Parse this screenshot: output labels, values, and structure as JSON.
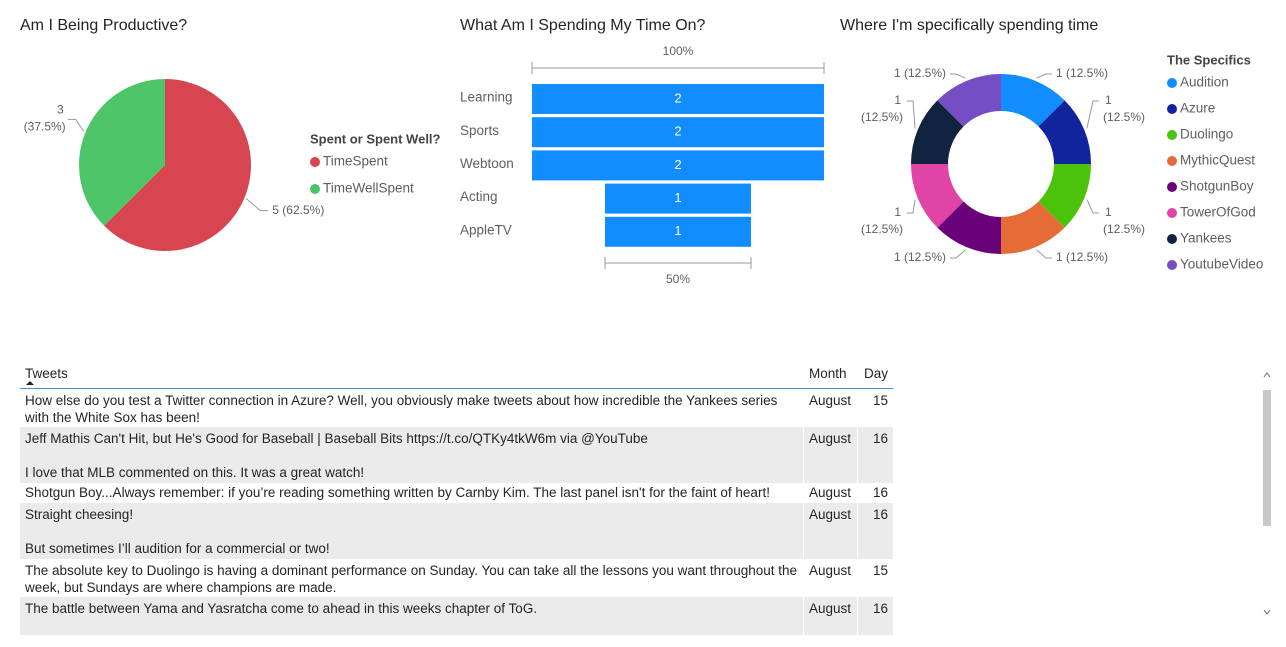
{
  "chart_data": [
    {
      "type": "pie",
      "title": "Am I Being Productive?",
      "legend_title": "Spent or Spent Well?",
      "categories": [
        "TimeSpent",
        "TimeWellSpent"
      ],
      "values": [
        5,
        3
      ],
      "value_labels": [
        "5 (62.5%)",
        "3 (37.5%)"
      ],
      "colors": [
        "#d64550",
        "#4fc56a"
      ]
    },
    {
      "type": "funnel",
      "title": "What Am I Spending My Time On?",
      "categories": [
        "Learning",
        "Sports",
        "Webtoon",
        "Acting",
        "AppleTV"
      ],
      "values": [
        2,
        2,
        2,
        1,
        1
      ],
      "top_label": "100%",
      "bottom_label": "50%",
      "color": "#118dff"
    },
    {
      "type": "donut",
      "title": "Where I'm specifically spending time",
      "legend_title": "The Specifics",
      "categories": [
        "Audition",
        "Azure",
        "Duolingo",
        "MythicQuest",
        "ShotgunBoy",
        "TowerOfGod",
        "Yankees",
        "YoutubeVideo"
      ],
      "values": [
        1,
        1,
        1,
        1,
        1,
        1,
        1,
        1
      ],
      "value_labels": [
        "1 (12.5%)",
        "1 (12.5%)",
        "1 (12.5%)",
        "1 (12.5%)",
        "1 (12.5%)",
        "1 (12.5%)",
        "1 (12.5%)",
        "1 (12.5%)"
      ],
      "colors": [
        "#118dff",
        "#12239e",
        "#4cc30b",
        "#e66c37",
        "#6b007b",
        "#e044a7",
        "#12233f",
        "#744ec2"
      ]
    }
  ],
  "table": {
    "columns": [
      "Tweets",
      "Month",
      "Day"
    ],
    "rows": [
      [
        "How else do you test a Twitter connection in Azure? Well, you obviously make tweets about how incredible the Yankees series with the White Sox has been!",
        "August",
        "15"
      ],
      [
        "Jeff Mathis Can't Hit, but He's Good for Baseball | Baseball Bits https://t.co/QTKy4tkW6m via @YouTube\n\nI love that MLB commented on this. It was a great watch!",
        "August",
        "16"
      ],
      [
        "Shotgun Boy...Always remember: if you’re reading something written by Carnby Kim. The last panel isn't for the faint of heart!",
        "August",
        "16"
      ],
      [
        "Straight cheesing!\n\nBut sometimes I’ll audition for a commercial or two!",
        "August",
        "16"
      ],
      [
        "The absolute key to Duolingo is having a dominant performance on Sunday. You can take all the lessons you want throughout the week, but Sundays are where champions are made.",
        "August",
        "15"
      ],
      [
        "The battle between Yama and Yasratcha come to ahead in this weeks chapter of ToG.",
        "August",
        "16"
      ]
    ]
  }
}
